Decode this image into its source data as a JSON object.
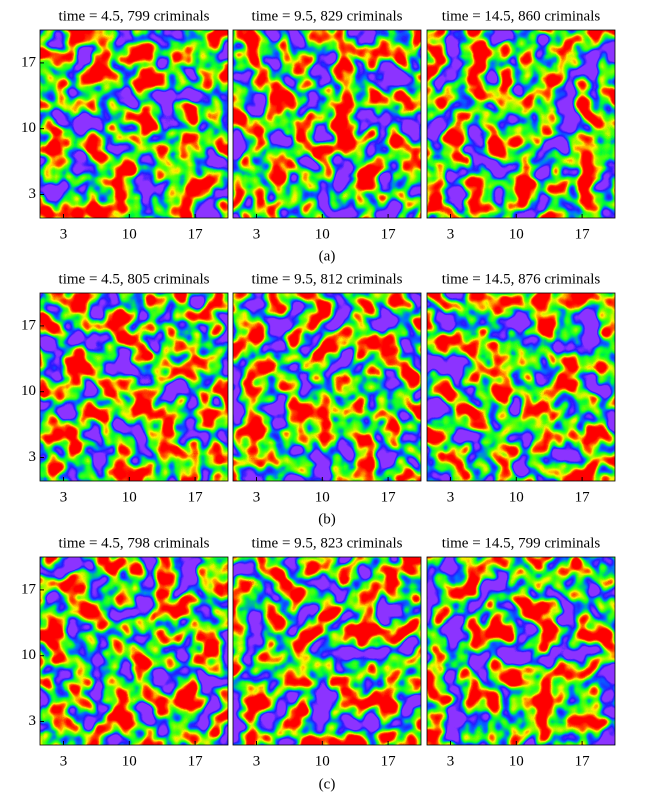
{
  "chart_data": [
    {
      "type": "heatmap",
      "title": "time = 4.5, 799 criminals",
      "xlim": [
        0.5,
        20.5
      ],
      "ylim": [
        0.5,
        20.5
      ],
      "xticks": [
        3,
        10,
        17
      ],
      "yticks": [
        3,
        10,
        17
      ]
    },
    {
      "type": "heatmap",
      "title": "time = 9.5, 829 criminals",
      "xlim": [
        0.5,
        20.5
      ],
      "ylim": [
        0.5,
        20.5
      ],
      "xticks": [
        3,
        10,
        17
      ]
    },
    {
      "type": "heatmap",
      "title": "time = 14.5, 860 criminals",
      "xlim": [
        0.5,
        20.5
      ],
      "ylim": [
        0.5,
        20.5
      ],
      "xticks": [
        3,
        10,
        17
      ]
    },
    {
      "type": "heatmap",
      "title": "time = 4.5, 805 criminals",
      "xlim": [
        0.5,
        20.5
      ],
      "ylim": [
        0.5,
        20.5
      ],
      "xticks": [
        3,
        10,
        17
      ],
      "yticks": [
        3,
        10,
        17
      ]
    },
    {
      "type": "heatmap",
      "title": "time = 9.5, 812 criminals",
      "xlim": [
        0.5,
        20.5
      ],
      "ylim": [
        0.5,
        20.5
      ],
      "xticks": [
        3,
        10,
        17
      ]
    },
    {
      "type": "heatmap",
      "title": "time = 14.5, 876 criminals",
      "xlim": [
        0.5,
        20.5
      ],
      "ylim": [
        0.5,
        20.5
      ],
      "xticks": [
        3,
        10,
        17
      ]
    },
    {
      "type": "heatmap",
      "title": "time = 4.5, 798 criminals",
      "xlim": [
        0.5,
        20.5
      ],
      "ylim": [
        0.5,
        20.5
      ],
      "xticks": [
        3,
        10,
        17
      ],
      "yticks": [
        3,
        10,
        17
      ]
    },
    {
      "type": "heatmap",
      "title": "time = 9.5, 823 criminals",
      "xlim": [
        0.5,
        20.5
      ],
      "ylim": [
        0.5,
        20.5
      ],
      "xticks": [
        3,
        10,
        17
      ]
    },
    {
      "type": "heatmap",
      "title": "time = 14.5, 799 criminals",
      "xlim": [
        0.5,
        20.5
      ],
      "ylim": [
        0.5,
        20.5
      ],
      "xticks": [
        3,
        10,
        17
      ]
    }
  ],
  "captions": [
    "(a)",
    "(b)",
    "(c)"
  ]
}
